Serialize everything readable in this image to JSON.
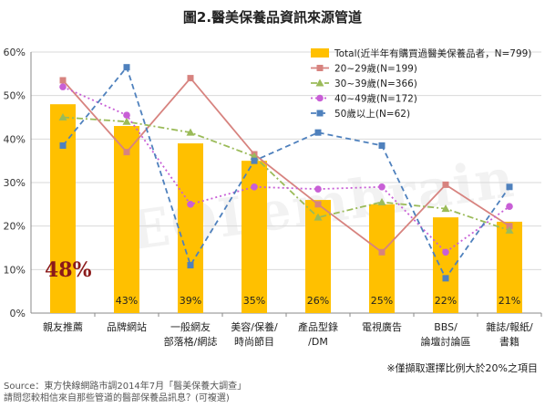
{
  "watermark": "EOLembrain",
  "chart_data": {
    "type": "bar",
    "title": "圖2.醫美保養品資訊來源管道",
    "categories": [
      [
        "親友推薦"
      ],
      [
        "品牌網站"
      ],
      [
        "一般網友",
        "部落格/網誌"
      ],
      [
        "美容/保養/",
        "時尚節目"
      ],
      [
        "產品型錄",
        "/DM"
      ],
      [
        "電視廣告"
      ],
      [
        "BBS/",
        "論壇討論區"
      ],
      [
        "雜誌/報紙/",
        "書籍"
      ]
    ],
    "ylim": [
      0,
      60
    ],
    "yticks": [
      "0%",
      "10%",
      "20%",
      "30%",
      "40%",
      "50%",
      "60%"
    ],
    "grid": true,
    "legend_position": "top-right",
    "bar_series": {
      "name": "Total(近半年有購買過醫美保養品者，N=799)",
      "color": "#FFC000",
      "values": [
        48,
        43,
        39,
        35,
        26,
        25,
        22,
        21
      ],
      "labels": [
        "48%",
        "43%",
        "39%",
        "35%",
        "26%",
        "25%",
        "22%",
        "21%"
      ],
      "highlight_label_color": "#8B1A1A"
    },
    "series": [
      {
        "name": "20~29歲(N=199)",
        "color": "#D7837F",
        "dash": "solid",
        "marker": "square",
        "values": [
          53.5,
          37,
          54,
          36.5,
          25,
          14,
          29.5,
          20
        ]
      },
      {
        "name": "30~39歲(N=366)",
        "color": "#9BBB59",
        "dash": "dashdot",
        "marker": "triangle",
        "values": [
          45,
          44,
          41.5,
          36,
          22,
          25.5,
          24,
          19
        ]
      },
      {
        "name": "40~49歲(N=172)",
        "color": "#C85FD6",
        "dash": "dot",
        "marker": "circle",
        "values": [
          52,
          45.5,
          25,
          29,
          28.5,
          29,
          14,
          24.5
        ]
      },
      {
        "name": "50歲以上(N=62)",
        "color": "#4F81BD",
        "dash": "dash",
        "marker": "square",
        "values": [
          38.5,
          56.5,
          11,
          35,
          41.5,
          38.5,
          8,
          29
        ]
      }
    ]
  },
  "footnote": "※僅擷取選擇比例大於20%之項目",
  "source": {
    "line1": "Source：東方快線網路市調2014年7月「醫美保養大調查」",
    "line2": "請問您較相信來自那些管道的醫部保養品訊息？(可複選)"
  }
}
